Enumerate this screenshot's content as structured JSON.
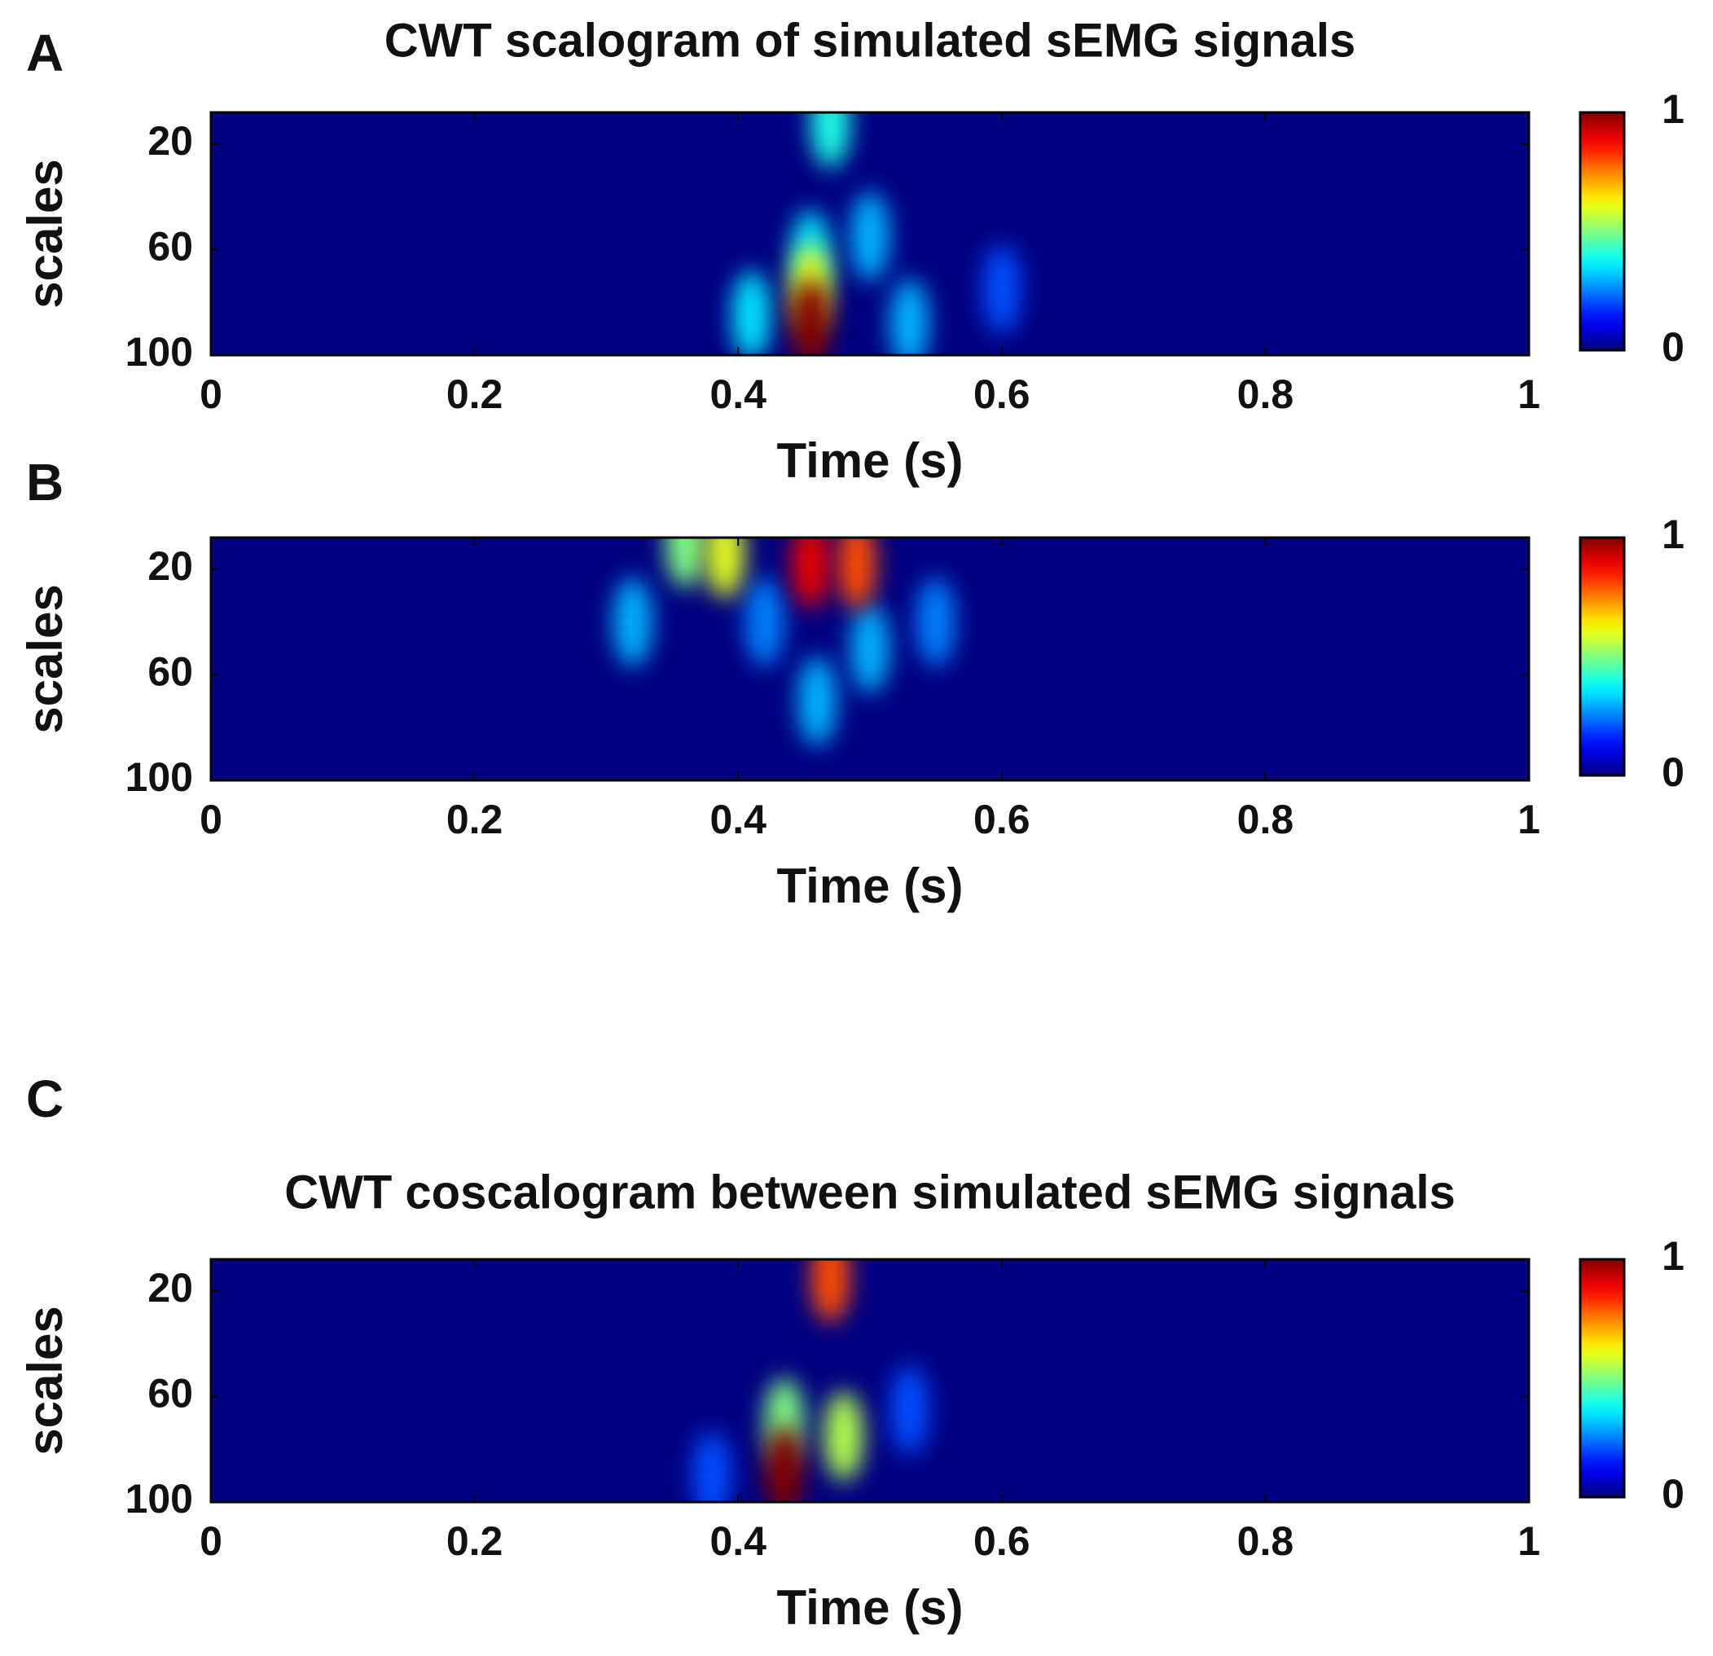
{
  "chart_data": [
    {
      "type": "heatmap",
      "panel_label": "A",
      "title": "CWT scalogram of simulated sEMG signals",
      "xlabel": "Time (s)",
      "ylabel": "scales",
      "xlim": [
        0,
        1
      ],
      "xticks": [
        0,
        0.2,
        0.4,
        0.6,
        0.8,
        1
      ],
      "ylim": [
        100,
        8
      ],
      "yticks": [
        20,
        60,
        100
      ],
      "points": {
        "x": [
          0.41,
          0.5,
          0.53,
          0.6,
          0.47,
          0.455,
          0.455,
          0.455
        ],
        "y": [
          85,
          55,
          88,
          75,
          12,
          62,
          75,
          88
        ],
        "values": [
          0.35,
          0.3,
          0.3,
          0.2,
          0.4,
          0.35,
          0.6,
          1
        ]
      },
      "colorbar": {
        "colormap": "jet",
        "clim": [
          0,
          1
        ],
        "ticks": [
          0,
          1
        ]
      }
    },
    {
      "type": "heatmap",
      "panel_label": "B",
      "xlabel": "Time (s)",
      "ylabel": "scales",
      "xlim": [
        0,
        1
      ],
      "xticks": [
        0,
        0.2,
        0.4,
        0.6,
        0.8,
        1
      ],
      "ylim": [
        100,
        8
      ],
      "yticks": [
        20,
        60,
        100
      ],
      "points": {
        "x": [
          0.32,
          0.42,
          0.46,
          0.5,
          0.55,
          0.36,
          0.39,
          0.49,
          0.455
        ],
        "y": [
          40,
          40,
          70,
          50,
          40,
          10,
          14,
          18,
          18
        ],
        "values": [
          0.3,
          0.25,
          0.3,
          0.3,
          0.25,
          0.5,
          0.6,
          0.8,
          0.9
        ]
      },
      "colorbar": {
        "colormap": "jet",
        "clim": [
          0,
          1
        ],
        "ticks": [
          0,
          1
        ]
      }
    },
    {
      "type": "heatmap",
      "panel_label": "C",
      "title": "CWT coscalogram between simulated sEMG signals",
      "xlabel": "Time (s)",
      "ylabel": "scales",
      "xlim": [
        0,
        1
      ],
      "xticks": [
        0,
        0.2,
        0.4,
        0.6,
        0.8,
        1
      ],
      "ylim": [
        100,
        8
      ],
      "yticks": [
        20,
        60,
        100
      ],
      "points": {
        "x": [
          0.38,
          0.53,
          0.48,
          0.435,
          0.47,
          0.435
        ],
        "y": [
          90,
          65,
          75,
          70,
          15,
          88
        ],
        "values": [
          0.2,
          0.2,
          0.55,
          0.5,
          0.8,
          1
        ]
      },
      "colorbar": {
        "colormap": "jet",
        "clim": [
          0,
          1
        ],
        "ticks": [
          0,
          1
        ]
      }
    }
  ]
}
